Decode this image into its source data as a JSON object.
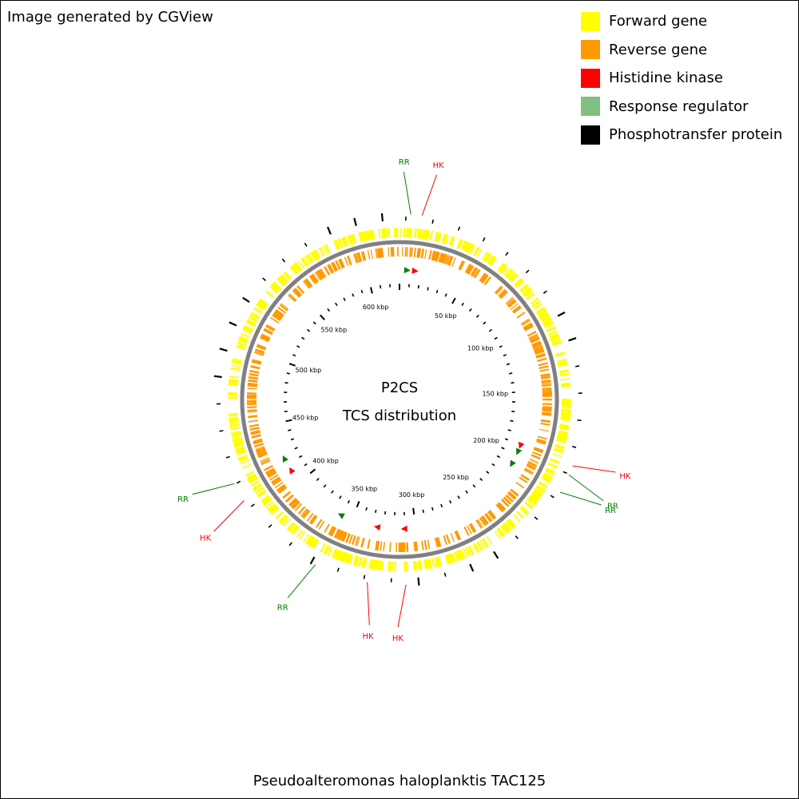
{
  "credit": "Image generated by CGView",
  "legend": [
    {
      "label": "Forward gene",
      "color": "#ffff00"
    },
    {
      "label": "Reverse gene",
      "color": "#ff9900"
    },
    {
      "label": "Histidine kinase",
      "color": "#ff0000"
    },
    {
      "label": "Response regulator",
      "color": "#80c080"
    },
    {
      "label": "Phosphotransfer protein",
      "color": "#000000"
    }
  ],
  "center_title": "P2CS",
  "center_subtitle": "TCS distribution",
  "organism": "Pseudoalteromonas haloplanktis TAC125",
  "ruler_labels": [
    "50 kbp",
    "100 kbp",
    "150 kbp",
    "200 kbp",
    "250 kbp",
    "300 kbp",
    "350 kbp",
    "400 kbp",
    "450 kbp",
    "500 kbp",
    "550 kbp",
    "600 kbp"
  ],
  "markers": [
    {
      "label": "RR",
      "kind": "rr",
      "angle": 3.5
    },
    {
      "label": "HK",
      "kind": "hk",
      "angle": 7
    },
    {
      "label": "HK",
      "kind": "hk",
      "angle": 111
    },
    {
      "label": "RR",
      "kind": "rr",
      "angle": 114
    },
    {
      "label": "RR",
      "kind": "rr",
      "angle": 120
    },
    {
      "label": "HK",
      "kind": "hk",
      "angle": 178
    },
    {
      "label": "HK",
      "kind": "hk",
      "angle": 190
    },
    {
      "label": "RR",
      "kind": "rr",
      "angle": 207
    },
    {
      "label": "HK",
      "kind": "hk",
      "angle": 237
    },
    {
      "label": "RR",
      "kind": "rr",
      "angle": 243
    }
  ],
  "colors": {
    "forward": "#ffff00",
    "reverse": "#ff9900",
    "hk": "#ff0000",
    "rr": "#008000",
    "phosphotransfer": "#000000",
    "backbone": "#808080"
  }
}
